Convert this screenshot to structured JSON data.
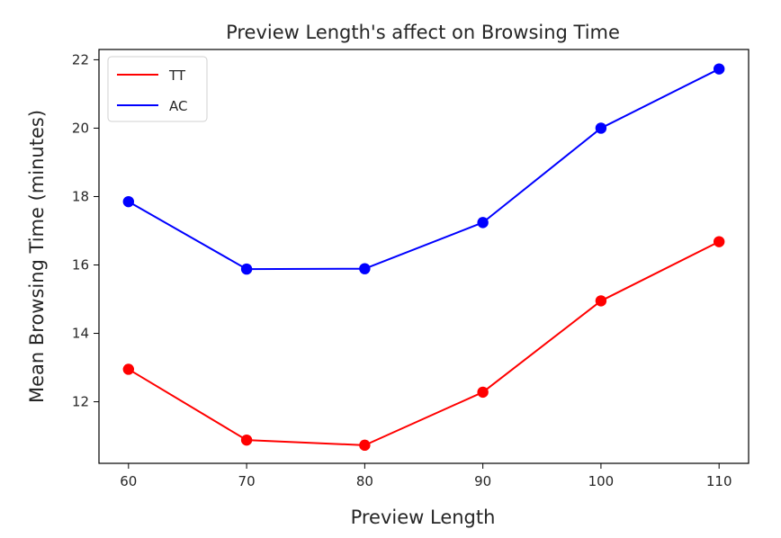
{
  "chart_data": {
    "type": "line",
    "title": "Preview Length's affect on Browsing Time",
    "xlabel": "Preview Length",
    "ylabel": "Mean Browsing Time (minutes)",
    "x": [
      60,
      70,
      80,
      90,
      100,
      110
    ],
    "xticks": [
      60,
      70,
      80,
      90,
      100,
      110
    ],
    "yticks": [
      12,
      14,
      16,
      18,
      20,
      22
    ],
    "xlim": [
      57.5,
      112.5
    ],
    "ylim": [
      10.2,
      22.3
    ],
    "grid": false,
    "legend_position": "top-left",
    "series": [
      {
        "name": "TT",
        "color": "#ff0000",
        "values": [
          12.95,
          10.88,
          10.73,
          12.28,
          14.95,
          16.68
        ]
      },
      {
        "name": "AC",
        "color": "#0000ff",
        "values": [
          17.85,
          15.88,
          15.89,
          17.24,
          20.0,
          21.73
        ]
      }
    ]
  }
}
